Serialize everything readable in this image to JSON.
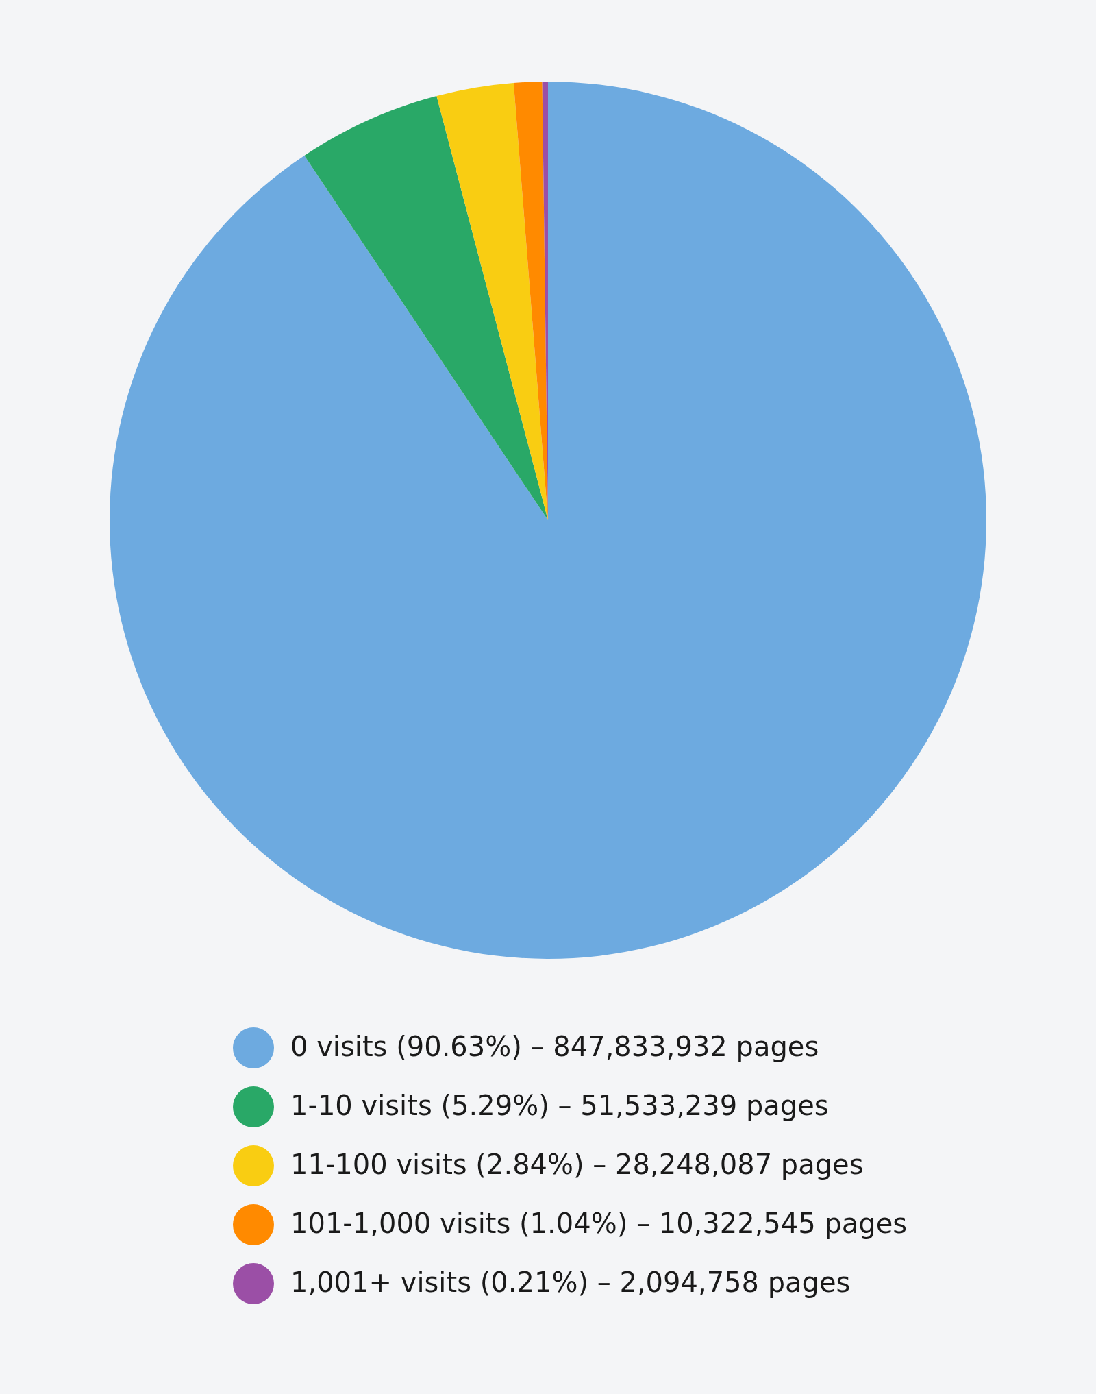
{
  "chart_data": {
    "type": "pie",
    "categories": [
      "0 visits (90.63%) – 847,833,932 pages",
      "1-10 visits (5.29%) – 51,533,239 pages",
      "11-100 visits (2.84%) – 28,248,087 pages",
      "101-1,000 visits (1.04%) – 10,322,545 pages",
      "1,001+ visits (0.21%) – 2,094,758 pages"
    ],
    "values": [
      90.63,
      5.29,
      2.84,
      1.04,
      0.21
    ],
    "colors": [
      "#6daae0",
      "#29a867",
      "#f9cd12",
      "#ff8a00",
      "#9b4fa6"
    ],
    "legend": "bottom"
  }
}
